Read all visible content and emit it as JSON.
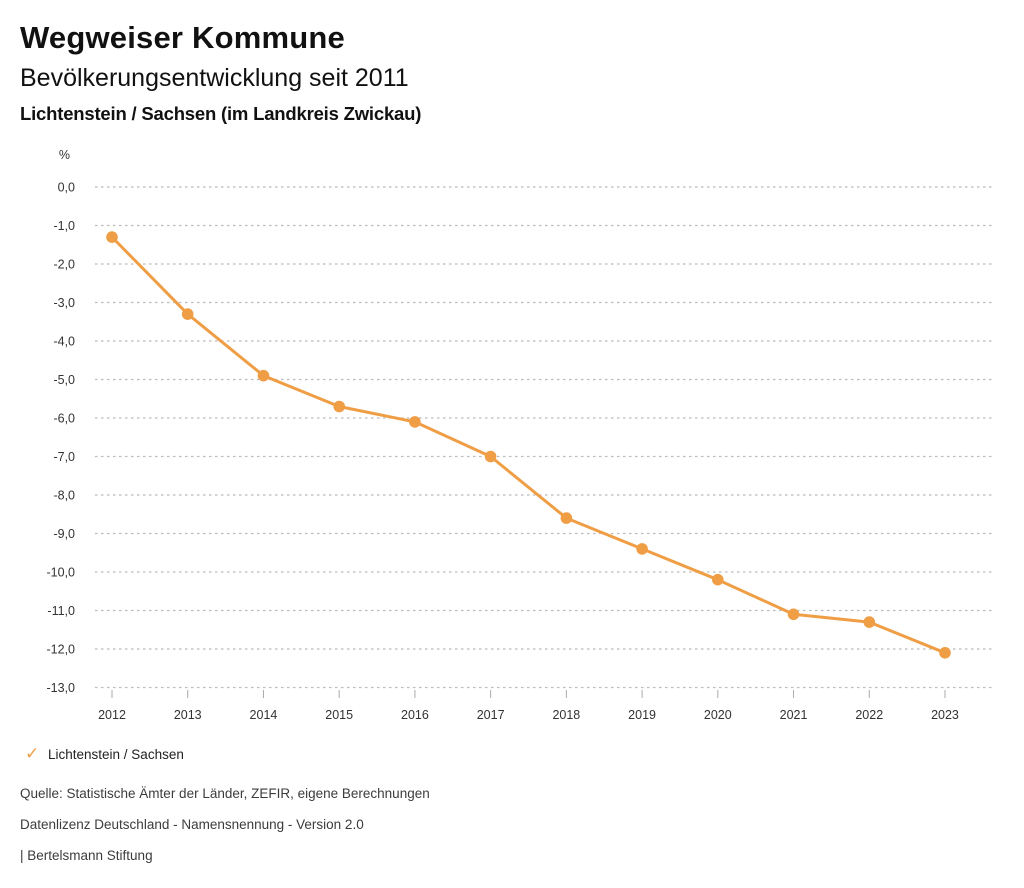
{
  "header": {
    "title": "Wegweiser Kommune",
    "subtitle": "Bevölkerungsentwicklung seit 2011",
    "location": "Lichtenstein / Sachsen (im Landkreis Zwickau)"
  },
  "chart_data": {
    "type": "line",
    "title": "Bevölkerungsentwicklung seit 2011",
    "unit_label": "%",
    "x": [
      2012,
      2013,
      2014,
      2015,
      2016,
      2017,
      2018,
      2019,
      2020,
      2021,
      2022,
      2023
    ],
    "series": [
      {
        "name": "Lichtenstein / Sachsen",
        "values": [
          -1.3,
          -3.3,
          -4.9,
          -5.7,
          -6.1,
          -7.0,
          -8.6,
          -9.4,
          -10.2,
          -11.1,
          -11.3,
          -12.1
        ]
      }
    ],
    "ylim": [
      -13.0,
      0.0
    ],
    "yticks": [
      0,
      -1,
      -2,
      -3,
      -4,
      -5,
      -6,
      -7,
      -8,
      -9,
      -10,
      -11,
      -12,
      -13
    ],
    "ytick_labels": [
      "0,0",
      "-1,0",
      "-2,0",
      "-3,0",
      "-4,0",
      "-5,0",
      "-6,0",
      "-7,0",
      "-8,0",
      "-9,0",
      "-10,0",
      "-11,0",
      "-12,0",
      "-13,0"
    ],
    "xtick_labels": [
      "2012",
      "2013",
      "2014",
      "2015",
      "2016",
      "2017",
      "2018",
      "2019",
      "2020",
      "2021",
      "2022",
      "2023"
    ],
    "grid": "horizontal dotted",
    "legend_position": "bottom-left"
  },
  "legend": {
    "check_icon": "✓",
    "label": "Lichtenstein / Sachsen"
  },
  "footer": {
    "source": "Quelle: Statistische Ämter der Länder, ZEFIR, eigene Berechnungen",
    "license": "Datenlizenz Deutschland - Namensnennung - Version 2.0",
    "attribution": "| Bertelsmann Stiftung"
  },
  "colors": {
    "line": "#F09E46",
    "grid": "#BBBBBB",
    "tick": "#AAAAAA",
    "axis_text": "#333333",
    "title_text": "#111111",
    "footer_text": "#3C3C3C"
  }
}
